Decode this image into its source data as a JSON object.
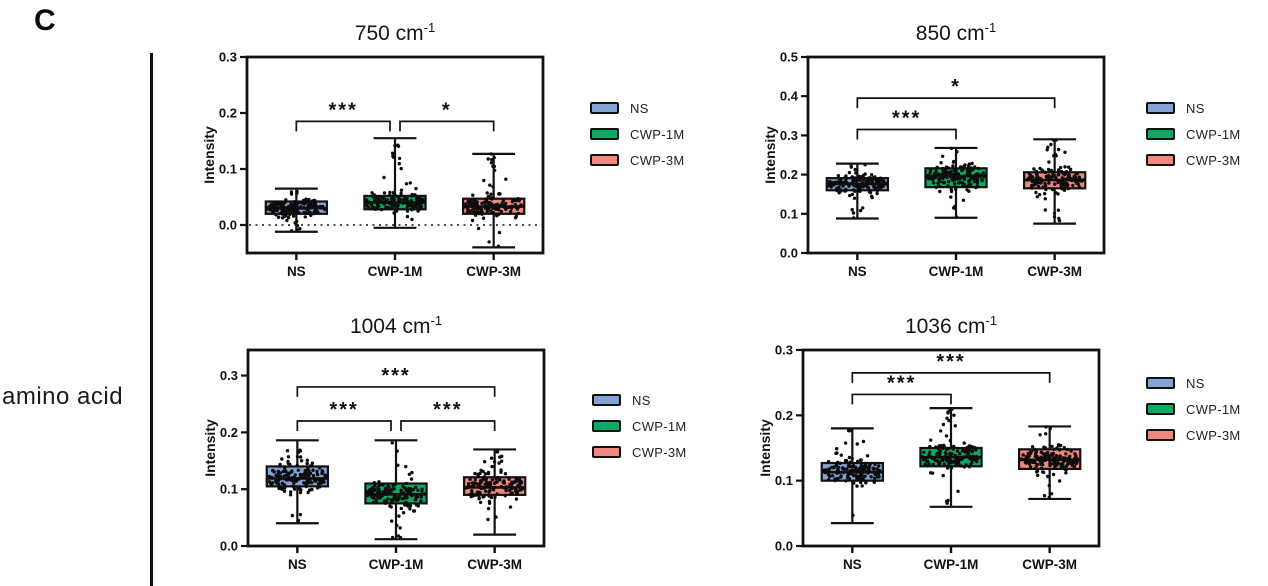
{
  "figure": {
    "panel_label": "C",
    "row_label": "amino acid",
    "axis_color": "#111111",
    "point_color": "#0d0d0d"
  },
  "legend": {
    "items": [
      {
        "label": "NS",
        "color": "#84A3D3"
      },
      {
        "label": "CWP-1M",
        "color": "#0BA964"
      },
      {
        "label": "CWP-3M",
        "color": "#F0887F"
      }
    ]
  },
  "chart_data": [
    {
      "type": "box",
      "title": "750 cm",
      "title_superscript": "-1",
      "ylabel": "Intensity",
      "xlabel": "",
      "categories": [
        "NS",
        "CWP-1M",
        "CWP-3M"
      ],
      "ylim": [
        -0.05,
        0.3
      ],
      "yticks": [
        0.0,
        0.1,
        0.2,
        0.3
      ],
      "zero_dotted_line": true,
      "points_per_group": 150,
      "boxes": [
        {
          "group": "NS",
          "whisker_low": -0.012,
          "q1": 0.02,
          "median": 0.03,
          "q3": 0.042,
          "whisker_high": 0.065
        },
        {
          "group": "CWP-1M",
          "whisker_low": -0.005,
          "q1": 0.028,
          "median": 0.04,
          "q3": 0.052,
          "whisker_high": 0.155
        },
        {
          "group": "CWP-3M",
          "whisker_low": -0.04,
          "q1": 0.02,
          "median": 0.033,
          "q3": 0.047,
          "whisker_high": 0.127
        }
      ],
      "significance": [
        {
          "groups": [
            "NS",
            "CWP-1M"
          ],
          "label": "***",
          "height": 0.185
        },
        {
          "groups": [
            "CWP-1M",
            "CWP-3M"
          ],
          "label": "*",
          "height": 0.185
        }
      ]
    },
    {
      "type": "box",
      "title": "850 cm",
      "title_superscript": "-1",
      "ylabel": "Intensity",
      "xlabel": "",
      "categories": [
        "NS",
        "CWP-1M",
        "CWP-3M"
      ],
      "ylim": [
        0,
        0.5
      ],
      "yticks": [
        0.0,
        0.1,
        0.2,
        0.3,
        0.4,
        0.5
      ],
      "zero_dotted_line": false,
      "points_per_group": 150,
      "boxes": [
        {
          "group": "NS",
          "whisker_low": 0.088,
          "q1": 0.16,
          "median": 0.176,
          "q3": 0.191,
          "whisker_high": 0.228
        },
        {
          "group": "CWP-1M",
          "whisker_low": 0.09,
          "q1": 0.168,
          "median": 0.196,
          "q3": 0.216,
          "whisker_high": 0.268
        },
        {
          "group": "CWP-3M",
          "whisker_low": 0.075,
          "q1": 0.165,
          "median": 0.186,
          "q3": 0.206,
          "whisker_high": 0.29
        }
      ],
      "significance": [
        {
          "groups": [
            "NS",
            "CWP-1M"
          ],
          "label": "***",
          "height": 0.315
        },
        {
          "groups": [
            "NS",
            "CWP-3M"
          ],
          "label": "*",
          "height": 0.395
        }
      ]
    },
    {
      "type": "box",
      "title": "1004 cm",
      "title_superscript": "-1",
      "ylabel": "Intensity",
      "xlabel": "",
      "categories": [
        "NS",
        "CWP-1M",
        "CWP-3M"
      ],
      "ylim": [
        0,
        0.345
      ],
      "yticks": [
        0.0,
        0.1,
        0.2,
        0.3
      ],
      "zero_dotted_line": false,
      "points_per_group": 150,
      "boxes": [
        {
          "group": "NS",
          "whisker_low": 0.04,
          "q1": 0.105,
          "median": 0.119,
          "q3": 0.14,
          "whisker_high": 0.186
        },
        {
          "group": "CWP-1M",
          "whisker_low": 0.012,
          "q1": 0.075,
          "median": 0.091,
          "q3": 0.11,
          "whisker_high": 0.186
        },
        {
          "group": "CWP-3M",
          "whisker_low": 0.02,
          "q1": 0.09,
          "median": 0.103,
          "q3": 0.121,
          "whisker_high": 0.17
        }
      ],
      "significance": [
        {
          "groups": [
            "NS",
            "CWP-1M"
          ],
          "label": "***",
          "height": 0.22
        },
        {
          "groups": [
            "CWP-1M",
            "CWP-3M"
          ],
          "label": "***",
          "height": 0.22
        },
        {
          "groups": [
            "NS",
            "CWP-3M"
          ],
          "label": "***",
          "height": 0.28
        }
      ]
    },
    {
      "type": "box",
      "title": "1036 cm",
      "title_superscript": "-1",
      "ylabel": "Intensity",
      "xlabel": "",
      "categories": [
        "NS",
        "CWP-1M",
        "CWP-3M"
      ],
      "ylim": [
        0,
        0.3
      ],
      "yticks": [
        0.0,
        0.1,
        0.2,
        0.3
      ],
      "zero_dotted_line": false,
      "points_per_group": 150,
      "boxes": [
        {
          "group": "NS",
          "whisker_low": 0.035,
          "q1": 0.1,
          "median": 0.113,
          "q3": 0.127,
          "whisker_high": 0.18
        },
        {
          "group": "CWP-1M",
          "whisker_low": 0.06,
          "q1": 0.122,
          "median": 0.136,
          "q3": 0.15,
          "whisker_high": 0.211
        },
        {
          "group": "CWP-3M",
          "whisker_low": 0.072,
          "q1": 0.118,
          "median": 0.132,
          "q3": 0.148,
          "whisker_high": 0.183
        }
      ],
      "significance": [
        {
          "groups": [
            "NS",
            "CWP-1M"
          ],
          "label": "***",
          "height": 0.232
        },
        {
          "groups": [
            "NS",
            "CWP-3M"
          ],
          "label": "***",
          "height": 0.265
        }
      ]
    }
  ]
}
